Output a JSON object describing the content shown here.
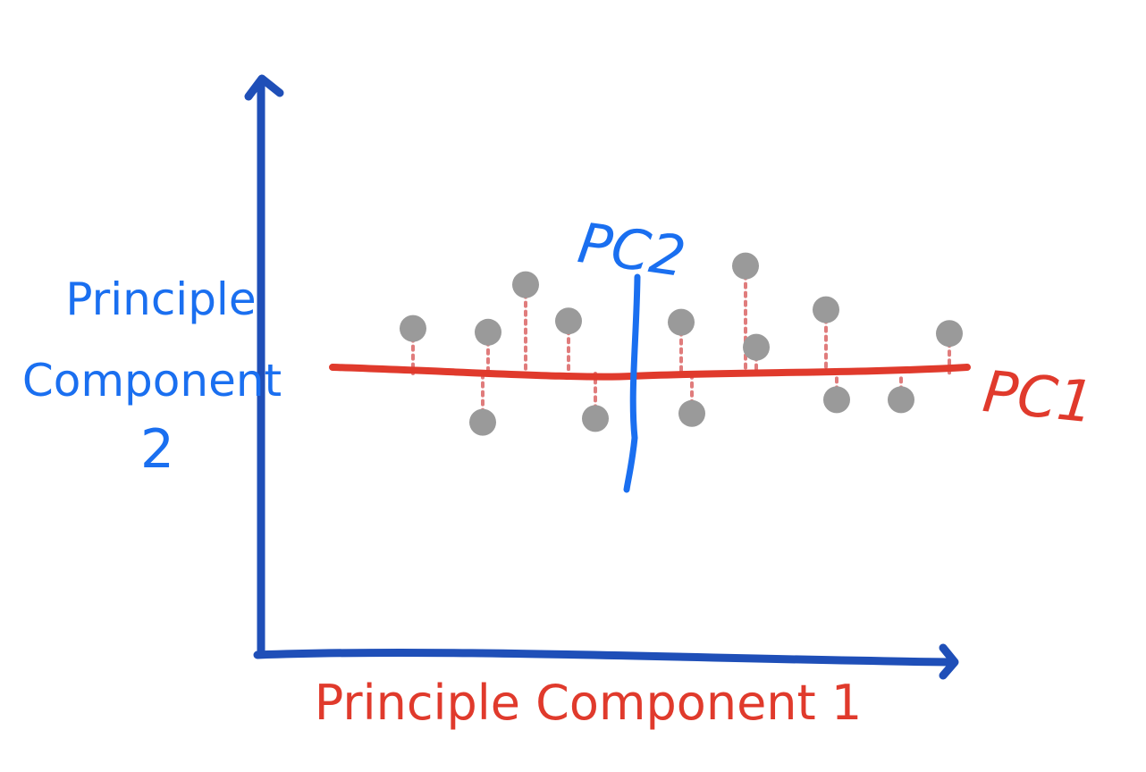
{
  "colors": {
    "axis": "#1f4fb8",
    "pc1": "#e03a2c",
    "pc2": "#1a6ff0",
    "point": "#9a9a9a",
    "projection": "#e07c7c",
    "background": "#ffffff"
  },
  "labels": {
    "y_axis": [
      "Principle",
      "Component",
      "2"
    ],
    "x_axis": "Principle Component 1",
    "pc1": "PC1",
    "pc2": "PC2"
  },
  "chart_data": {
    "type": "scatter",
    "description_units": "PC1 along horizontal, PC2 along vertical, origin at PC1/PC2 crossing",
    "points": [
      {
        "pc1": -4.1,
        "pc2": 0.72
      },
      {
        "pc1": -2.7,
        "pc2": 0.66
      },
      {
        "pc1": -2.8,
        "pc2": -0.78
      },
      {
        "pc1": -2.0,
        "pc2": 1.42
      },
      {
        "pc1": -1.2,
        "pc2": 0.84
      },
      {
        "pc1": -0.7,
        "pc2": -0.72
      },
      {
        "pc1": 0.9,
        "pc2": 0.82
      },
      {
        "pc1": 1.1,
        "pc2": -0.64
      },
      {
        "pc1": 2.1,
        "pc2": 1.72
      },
      {
        "pc1": 2.3,
        "pc2": 0.42
      },
      {
        "pc1": 3.6,
        "pc2": 1.02
      },
      {
        "pc1": 3.8,
        "pc2": -0.42
      },
      {
        "pc1": 5.0,
        "pc2": -0.42
      },
      {
        "pc1": 5.9,
        "pc2": 0.64
      }
    ]
  }
}
